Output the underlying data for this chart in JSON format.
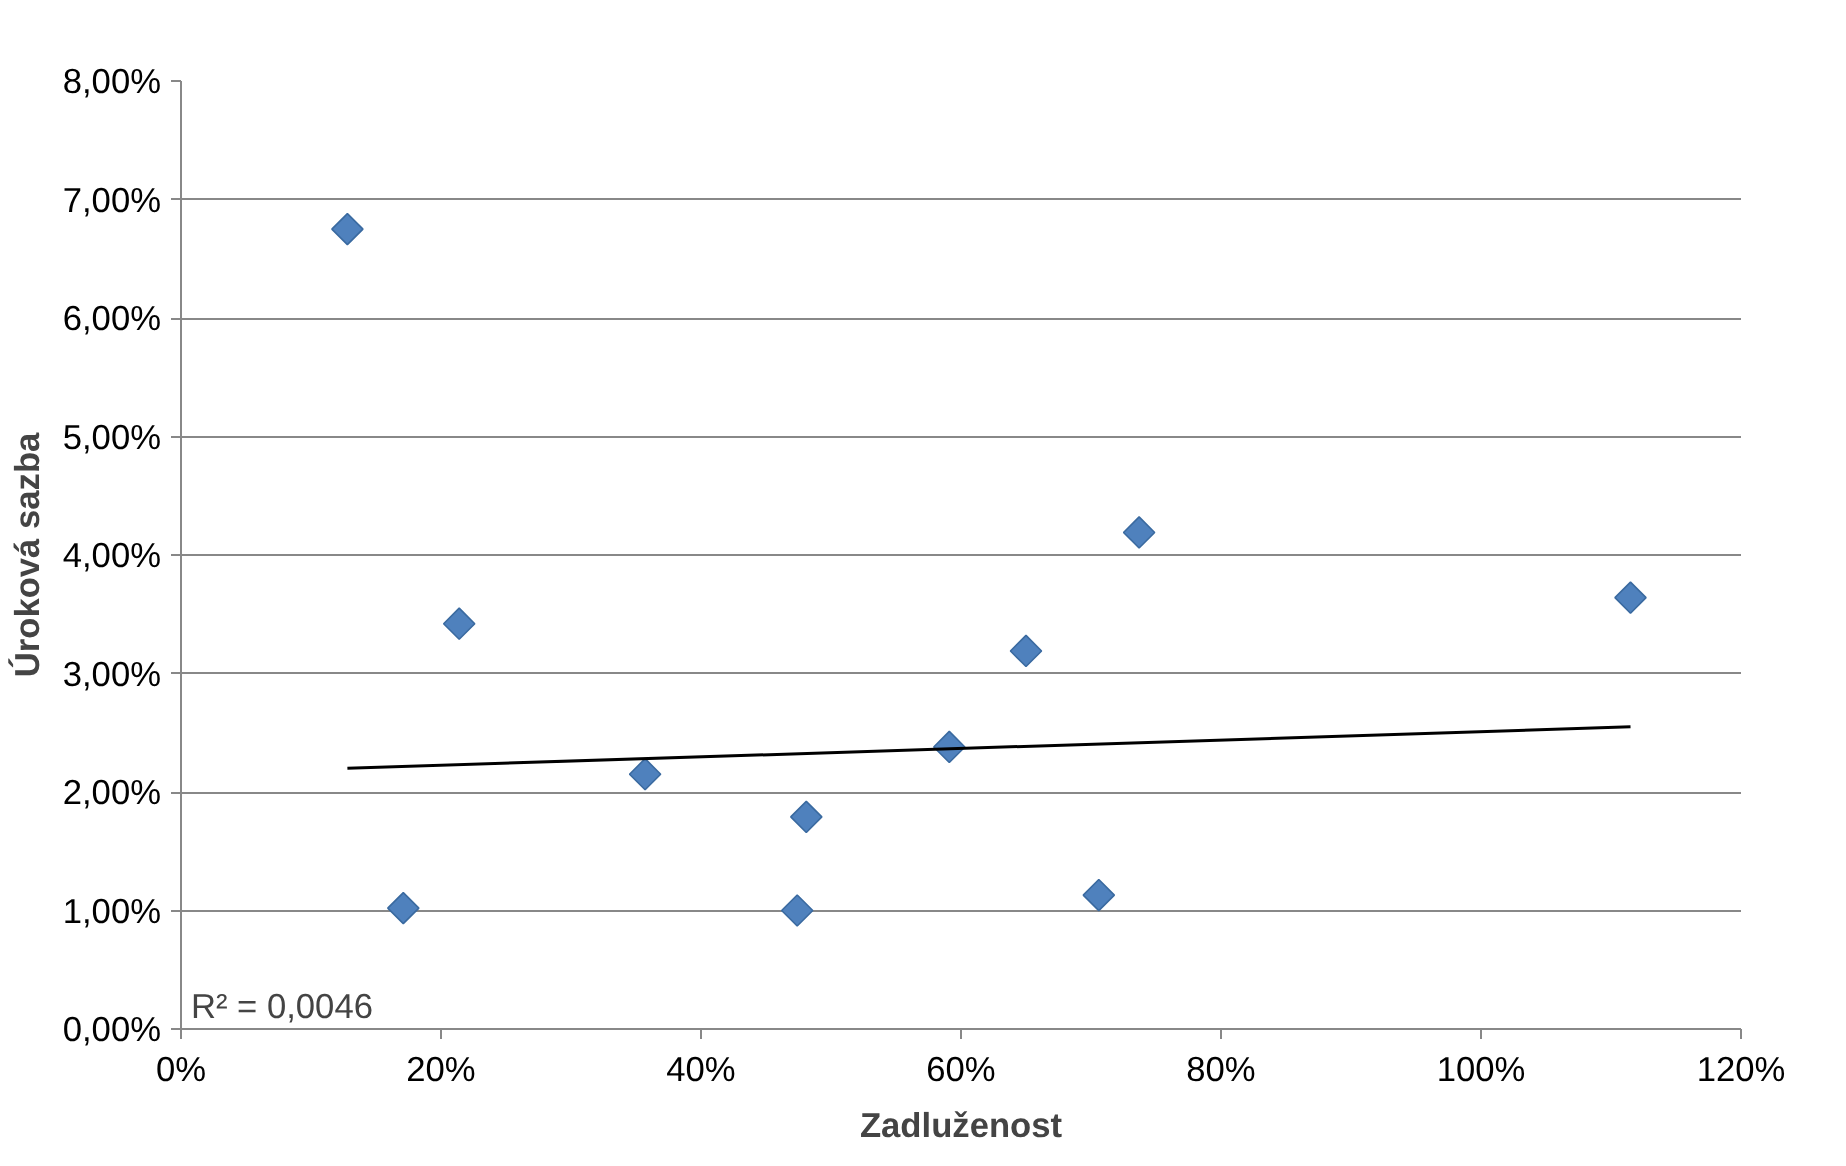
{
  "chart_data": {
    "type": "scatter",
    "xlabel": "Zadluženost",
    "ylabel": "Úroková sazba",
    "series": [
      {
        "color": "#4f81bd",
        "marker": "diamond",
        "x": [
          12.8,
          17.1,
          21.4,
          35.7,
          47.4,
          48.1,
          59.1,
          65.0,
          70.6,
          73.7,
          111.5
        ],
        "values": [
          6.75,
          1.02,
          3.42,
          2.15,
          1.0,
          1.79,
          2.38,
          3.19,
          1.13,
          4.19,
          3.64
        ]
      },
      {
        "type": "line",
        "color": "#000000",
        "x": [
          12.8,
          111.5
        ],
        "values": [
          2.2,
          2.55
        ]
      }
    ],
    "xlim": [
      0,
      120
    ],
    "ylim": [
      0,
      8
    ],
    "xticks": [
      {
        "value": 0,
        "label": "0%"
      },
      {
        "value": 20,
        "label": "20%"
      },
      {
        "value": 40,
        "label": "40%"
      },
      {
        "value": 60,
        "label": "60%"
      },
      {
        "value": 80,
        "label": "80%"
      },
      {
        "value": 100,
        "label": "100%"
      },
      {
        "value": 120,
        "label": "120%"
      }
    ],
    "yticks": [
      {
        "value": 0,
        "label": "0,00%"
      },
      {
        "value": 1,
        "label": "1,00%"
      },
      {
        "value": 2,
        "label": "2,00%"
      },
      {
        "value": 3,
        "label": "3,00%"
      },
      {
        "value": 4,
        "label": "4,00%"
      },
      {
        "value": 5,
        "label": "5,00%"
      },
      {
        "value": 6,
        "label": "6,00%"
      },
      {
        "value": 7,
        "label": "7,00%"
      },
      {
        "value": 8,
        "label": "8,00%"
      }
    ],
    "annotations": [
      "R² = 0,0046"
    ],
    "grid": "y",
    "line_style": "solid"
  }
}
